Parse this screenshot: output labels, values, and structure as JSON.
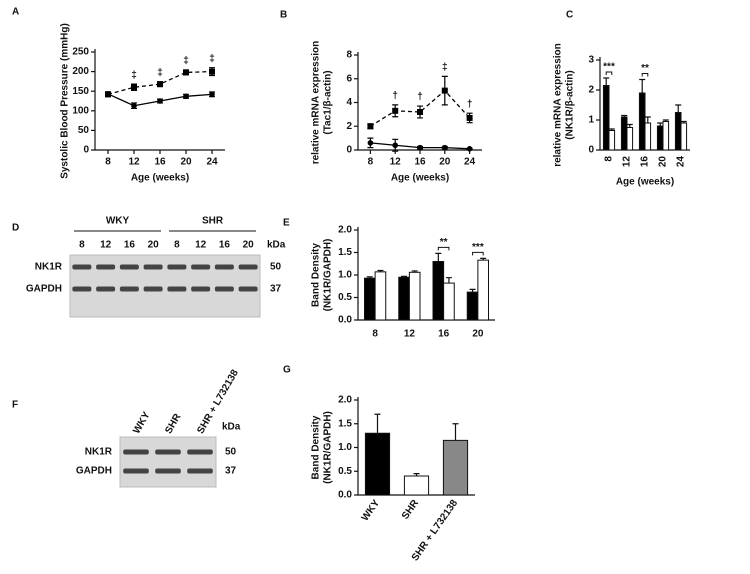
{
  "chart_data": [
    {
      "type": "line",
      "panel": "A",
      "ylabel": [
        "Systolic Blood Pressure (mmHg)"
      ],
      "xlabel": "Age (weeks)",
      "x": [
        8,
        12,
        16,
        20,
        24
      ],
      "xlim": [
        6,
        26
      ],
      "xticks": [
        8,
        12,
        16,
        20,
        24
      ],
      "ylim": [
        0,
        250
      ],
      "yticks": [
        0,
        50,
        100,
        150,
        200,
        250
      ],
      "series": [
        {
          "color": "#000000",
          "line_style": "dashed",
          "marker": "square",
          "values": [
            142,
            160,
            168,
            198,
            200
          ],
          "errors": [
            6,
            8,
            6,
            6,
            10
          ]
        },
        {
          "color": "#000000",
          "line_style": "solid",
          "marker": "circle",
          "values": [
            143,
            113,
            125,
            137,
            142
          ],
          "errors": [
            5,
            7,
            5,
            5,
            6
          ]
        }
      ],
      "annotations": [
        {
          "text": "‡",
          "x": 12
        },
        {
          "text": "‡",
          "x": 16
        },
        {
          "text": "‡",
          "x": 20
        },
        {
          "text": "‡",
          "x": 24
        }
      ]
    },
    {
      "type": "line",
      "panel": "B",
      "ylabel": [
        "relative mRNA expression",
        "(Tac1/β-actin)"
      ],
      "xlabel": "Age (weeks)",
      "x": [
        8,
        12,
        16,
        20,
        24
      ],
      "xlim": [
        6,
        26
      ],
      "xticks": [
        8,
        12,
        16,
        20,
        24
      ],
      "ylim": [
        0,
        8
      ],
      "yticks": [
        0,
        2,
        4,
        6,
        8
      ],
      "series": [
        {
          "color": "#000000",
          "line_style": "dashed",
          "marker": "square",
          "values": [
            2.0,
            3.3,
            3.2,
            5.0,
            2.7
          ],
          "errors": [
            0.2,
            0.5,
            0.5,
            1.2,
            0.4
          ]
        },
        {
          "color": "#000000",
          "line_style": "solid",
          "marker": "circle",
          "values": [
            0.6,
            0.4,
            0.2,
            0.2,
            0.1
          ],
          "errors": [
            0.4,
            0.5,
            0.1,
            0.1,
            0.05
          ]
        }
      ],
      "annotations": [
        {
          "text": "†",
          "x": 12
        },
        {
          "text": "†",
          "x": 16
        },
        {
          "text": "‡",
          "x": 20
        },
        {
          "text": "†",
          "x": 24
        }
      ]
    },
    {
      "type": "bar",
      "panel": "C",
      "ylabel": [
        "relative mRNA expression",
        "(NK1R/β-actin)"
      ],
      "xlabel": "Age (weeks)",
      "categories": [
        "8",
        "12",
        "16",
        "20",
        "24"
      ],
      "xtick_rotation": -90,
      "ylim": [
        0,
        3
      ],
      "yticks": [
        0,
        1,
        2,
        3
      ],
      "series": [
        {
          "color": "#000000",
          "values": [
            2.15,
            1.1,
            1.9,
            0.8,
            1.25
          ],
          "errors": [
            0.25,
            0.05,
            0.45,
            0.1,
            0.25
          ]
        },
        {
          "color": "#ffffff",
          "values": [
            0.65,
            0.75,
            0.9,
            0.95,
            0.9
          ],
          "errors": [
            0.05,
            0.1,
            0.2,
            0.05,
            0.05
          ]
        }
      ],
      "annotations": [
        {
          "text": "***",
          "category": "8"
        },
        {
          "text": "**",
          "category": "16"
        }
      ]
    },
    {
      "type": "bar",
      "panel": "E",
      "ylabel": [
        "Band Density",
        "(NK1R/GAPDH)"
      ],
      "categories": [
        "8",
        "12",
        "16",
        "20"
      ],
      "xtick_rotation": 0,
      "ylim": [
        0,
        2
      ],
      "yticks": [
        {
          "value": 0,
          "label": "0.0"
        },
        0.5,
        {
          "value": 1,
          "label": "1.0"
        },
        1.5,
        {
          "value": 2,
          "label": "2.0"
        }
      ],
      "series": [
        {
          "color": "#000000",
          "values": [
            0.93,
            0.95,
            1.3,
            0.62
          ],
          "errors": [
            0.03,
            0.02,
            0.18,
            0.06
          ]
        },
        {
          "color": "#ffffff",
          "values": [
            1.07,
            1.06,
            0.82,
            1.33
          ],
          "errors": [
            0.03,
            0.03,
            0.12,
            0.04
          ]
        }
      ],
      "annotations": [
        {
          "text": "**",
          "category": "16"
        },
        {
          "text": "***",
          "category": "20"
        }
      ]
    },
    {
      "type": "bar",
      "panel": "G",
      "ylabel": [
        "Band Density",
        "(NK1R/GAPDH)"
      ],
      "categories": [
        "WKY",
        "SHR",
        "SHR + L732138"
      ],
      "xtick_rotation": -55,
      "ylim": [
        0,
        2
      ],
      "yticks": [
        {
          "value": 0,
          "label": "0.0"
        },
        0.5,
        {
          "value": 1,
          "label": "1.0"
        },
        1.5,
        {
          "value": 2,
          "label": "2.0"
        }
      ],
      "values": [
        1.3,
        0.4,
        1.15
      ],
      "errors": [
        0.4,
        0.05,
        0.35
      ],
      "colors": [
        "#000000",
        "#ffffff",
        "#888888"
      ]
    }
  ],
  "blots": [
    {
      "panel": "D",
      "groups": [
        "WKY",
        "SHR"
      ],
      "lanes": [
        "8",
        "12",
        "16",
        "20",
        "8",
        "12",
        "16",
        "20"
      ],
      "bands": [
        "NK1R",
        "GAPDH"
      ],
      "unit": "kDa",
      "sizes": [
        50,
        37
      ]
    },
    {
      "panel": "F",
      "lanes": [
        "WKY",
        "SHR",
        "SHR + L732138"
      ],
      "bands": [
        "NK1R",
        "GAPDH"
      ],
      "unit": "kDa",
      "sizes": [
        50,
        37
      ]
    }
  ]
}
